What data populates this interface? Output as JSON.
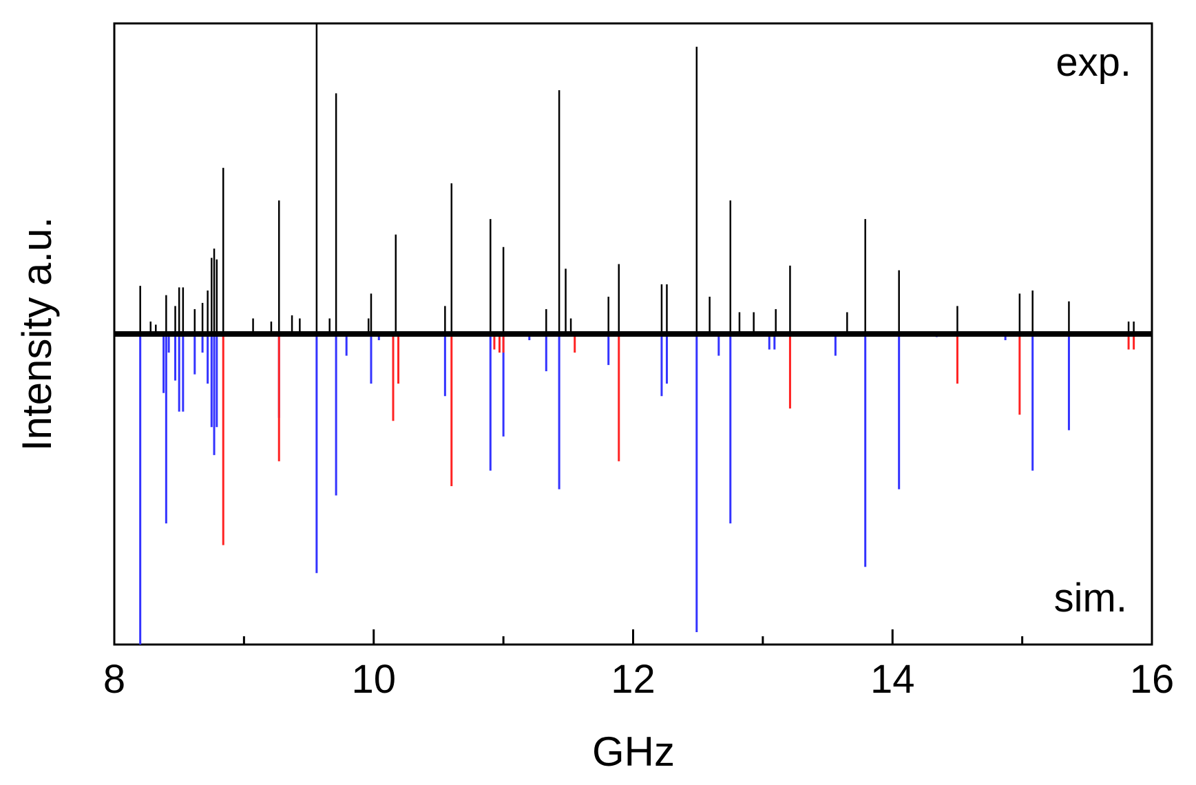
{
  "chart_data": {
    "type": "bar",
    "xlabel": "GHz",
    "ylabel": "Intensity a.u.",
    "xlim": [
      8,
      16
    ],
    "ylim": [
      -1.0,
      1.0
    ],
    "x_ticks": [
      8,
      10,
      12,
      14,
      16
    ],
    "x_minor_ticks": [
      9,
      11,
      13,
      15
    ],
    "grid": false,
    "annotations": {
      "top_right": "exp.",
      "bottom_right": "sim."
    },
    "colors": {
      "exp": "#000000",
      "sim_blue": "#3333ff",
      "sim_red": "#ff2222",
      "axes": "#000000",
      "background": "#ffffff"
    },
    "series": [
      {
        "key": "exp",
        "color": "#000000",
        "points": [
          {
            "x": 8.2,
            "y": 0.155
          },
          {
            "x": 8.28,
            "y": 0.04
          },
          {
            "x": 8.32,
            "y": 0.03
          },
          {
            "x": 8.4,
            "y": 0.125
          },
          {
            "x": 8.47,
            "y": 0.09
          },
          {
            "x": 8.5,
            "y": 0.15
          },
          {
            "x": 8.53,
            "y": 0.15
          },
          {
            "x": 8.62,
            "y": 0.08
          },
          {
            "x": 8.68,
            "y": 0.1
          },
          {
            "x": 8.72,
            "y": 0.14
          },
          {
            "x": 8.75,
            "y": 0.245
          },
          {
            "x": 8.77,
            "y": 0.275
          },
          {
            "x": 8.79,
            "y": 0.24
          },
          {
            "x": 8.84,
            "y": 0.535
          },
          {
            "x": 9.07,
            "y": 0.05
          },
          {
            "x": 9.21,
            "y": 0.04
          },
          {
            "x": 9.27,
            "y": 0.43
          },
          {
            "x": 9.37,
            "y": 0.06
          },
          {
            "x": 9.43,
            "y": 0.05
          },
          {
            "x": 9.56,
            "y": 1.0
          },
          {
            "x": 9.66,
            "y": 0.05
          },
          {
            "x": 9.71,
            "y": 0.775
          },
          {
            "x": 9.96,
            "y": 0.05
          },
          {
            "x": 9.98,
            "y": 0.13
          },
          {
            "x": 10.17,
            "y": 0.32
          },
          {
            "x": 10.55,
            "y": 0.09
          },
          {
            "x": 10.6,
            "y": 0.485
          },
          {
            "x": 10.9,
            "y": 0.37
          },
          {
            "x": 11.0,
            "y": 0.28
          },
          {
            "x": 11.33,
            "y": 0.08
          },
          {
            "x": 11.43,
            "y": 0.785
          },
          {
            "x": 11.48,
            "y": 0.21
          },
          {
            "x": 11.52,
            "y": 0.05
          },
          {
            "x": 11.81,
            "y": 0.12
          },
          {
            "x": 11.89,
            "y": 0.225
          },
          {
            "x": 12.22,
            "y": 0.16
          },
          {
            "x": 12.26,
            "y": 0.16
          },
          {
            "x": 12.49,
            "y": 0.925
          },
          {
            "x": 12.59,
            "y": 0.12
          },
          {
            "x": 12.75,
            "y": 0.43
          },
          {
            "x": 12.82,
            "y": 0.07
          },
          {
            "x": 12.93,
            "y": 0.07
          },
          {
            "x": 13.1,
            "y": 0.08
          },
          {
            "x": 13.21,
            "y": 0.22
          },
          {
            "x": 13.65,
            "y": 0.07
          },
          {
            "x": 13.79,
            "y": 0.37
          },
          {
            "x": 14.05,
            "y": 0.205
          },
          {
            "x": 14.5,
            "y": 0.09
          },
          {
            "x": 14.98,
            "y": 0.13
          },
          {
            "x": 15.08,
            "y": 0.14
          },
          {
            "x": 15.36,
            "y": 0.105
          },
          {
            "x": 15.82,
            "y": 0.04
          },
          {
            "x": 15.86,
            "y": 0.04
          }
        ]
      },
      {
        "key": "sim_blue",
        "color": "#3333ff",
        "points": [
          {
            "x": 8.2,
            "y": -1.0
          },
          {
            "x": 8.38,
            "y": -0.19
          },
          {
            "x": 8.4,
            "y": -0.61
          },
          {
            "x": 8.42,
            "y": -0.06
          },
          {
            "x": 8.47,
            "y": -0.15
          },
          {
            "x": 8.5,
            "y": -0.25
          },
          {
            "x": 8.53,
            "y": -0.25
          },
          {
            "x": 8.62,
            "y": -0.13
          },
          {
            "x": 8.68,
            "y": -0.06
          },
          {
            "x": 8.72,
            "y": -0.16
          },
          {
            "x": 8.75,
            "y": -0.3
          },
          {
            "x": 8.77,
            "y": -0.39
          },
          {
            "x": 8.79,
            "y": -0.3
          },
          {
            "x": 9.27,
            "y": -0.27
          },
          {
            "x": 9.56,
            "y": -0.77
          },
          {
            "x": 9.71,
            "y": -0.52
          },
          {
            "x": 9.79,
            "y": -0.07
          },
          {
            "x": 9.98,
            "y": -0.16
          },
          {
            "x": 10.04,
            "y": -0.02
          },
          {
            "x": 10.55,
            "y": -0.2
          },
          {
            "x": 10.9,
            "y": -0.44
          },
          {
            "x": 11.0,
            "y": -0.33
          },
          {
            "x": 11.2,
            "y": -0.02
          },
          {
            "x": 11.33,
            "y": -0.12
          },
          {
            "x": 11.43,
            "y": -0.5
          },
          {
            "x": 11.81,
            "y": -0.1
          },
          {
            "x": 12.22,
            "y": -0.2
          },
          {
            "x": 12.26,
            "y": -0.16
          },
          {
            "x": 12.49,
            "y": -0.96
          },
          {
            "x": 12.66,
            "y": -0.07
          },
          {
            "x": 12.75,
            "y": -0.61
          },
          {
            "x": 13.05,
            "y": -0.05
          },
          {
            "x": 13.09,
            "y": -0.05
          },
          {
            "x": 13.56,
            "y": -0.07
          },
          {
            "x": 13.79,
            "y": -0.75
          },
          {
            "x": 14.05,
            "y": -0.5
          },
          {
            "x": 14.34,
            "y": -0.01
          },
          {
            "x": 14.87,
            "y": -0.02
          },
          {
            "x": 15.08,
            "y": -0.44
          },
          {
            "x": 15.36,
            "y": -0.31
          }
        ]
      },
      {
        "key": "sim_red",
        "color": "#ff2222",
        "points": [
          {
            "x": 8.84,
            "y": -0.68
          },
          {
            "x": 9.27,
            "y": -0.41
          },
          {
            "x": 10.15,
            "y": -0.28
          },
          {
            "x": 10.19,
            "y": -0.16
          },
          {
            "x": 10.6,
            "y": -0.49
          },
          {
            "x": 10.93,
            "y": -0.05
          },
          {
            "x": 10.97,
            "y": -0.06
          },
          {
            "x": 11.0,
            "y": -0.06
          },
          {
            "x": 11.55,
            "y": -0.06
          },
          {
            "x": 11.89,
            "y": -0.41
          },
          {
            "x": 13.21,
            "y": -0.24
          },
          {
            "x": 14.5,
            "y": -0.16
          },
          {
            "x": 14.98,
            "y": -0.26
          },
          {
            "x": 15.82,
            "y": -0.05
          },
          {
            "x": 15.86,
            "y": -0.05
          }
        ]
      }
    ]
  }
}
